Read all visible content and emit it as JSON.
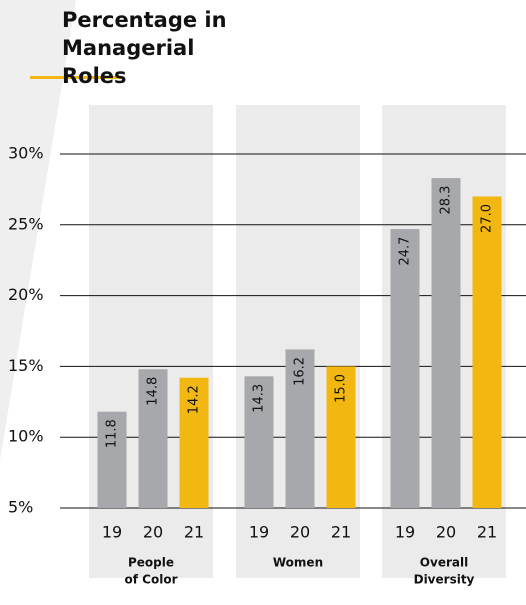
{
  "chart_data": {
    "type": "bar",
    "title": "Percentage in Managerial Roles",
    "categories": [
      [
        "People",
        "of Color"
      ],
      [
        "Women"
      ],
      [
        "Overall",
        "Diversity"
      ]
    ],
    "series": [
      {
        "name": "19",
        "color": "#a7a8ab",
        "values": [
          11.8,
          14.3,
          24.7
        ],
        "value_labels": [
          "11.8",
          "14.3",
          "24.7"
        ]
      },
      {
        "name": "20",
        "color": "#a7a8ab",
        "values": [
          14.8,
          16.2,
          28.3
        ],
        "value_labels": [
          "14.8",
          "16.2",
          "28.3"
        ]
      },
      {
        "name": "21",
        "color": "#f2b711",
        "values": [
          14.2,
          15.0,
          27.0
        ],
        "value_labels": [
          "14.2",
          "15.0",
          "27.0"
        ]
      }
    ],
    "ylim": [
      5,
      30
    ],
    "yticks": [
      {
        "value": 5,
        "label": "5%"
      },
      {
        "value": 10,
        "label": "10%"
      },
      {
        "value": 15,
        "label": "15%"
      },
      {
        "value": 20,
        "label": "20%"
      },
      {
        "value": 25,
        "label": "25%"
      },
      {
        "value": 30,
        "label": "30%"
      }
    ],
    "grid": true
  }
}
